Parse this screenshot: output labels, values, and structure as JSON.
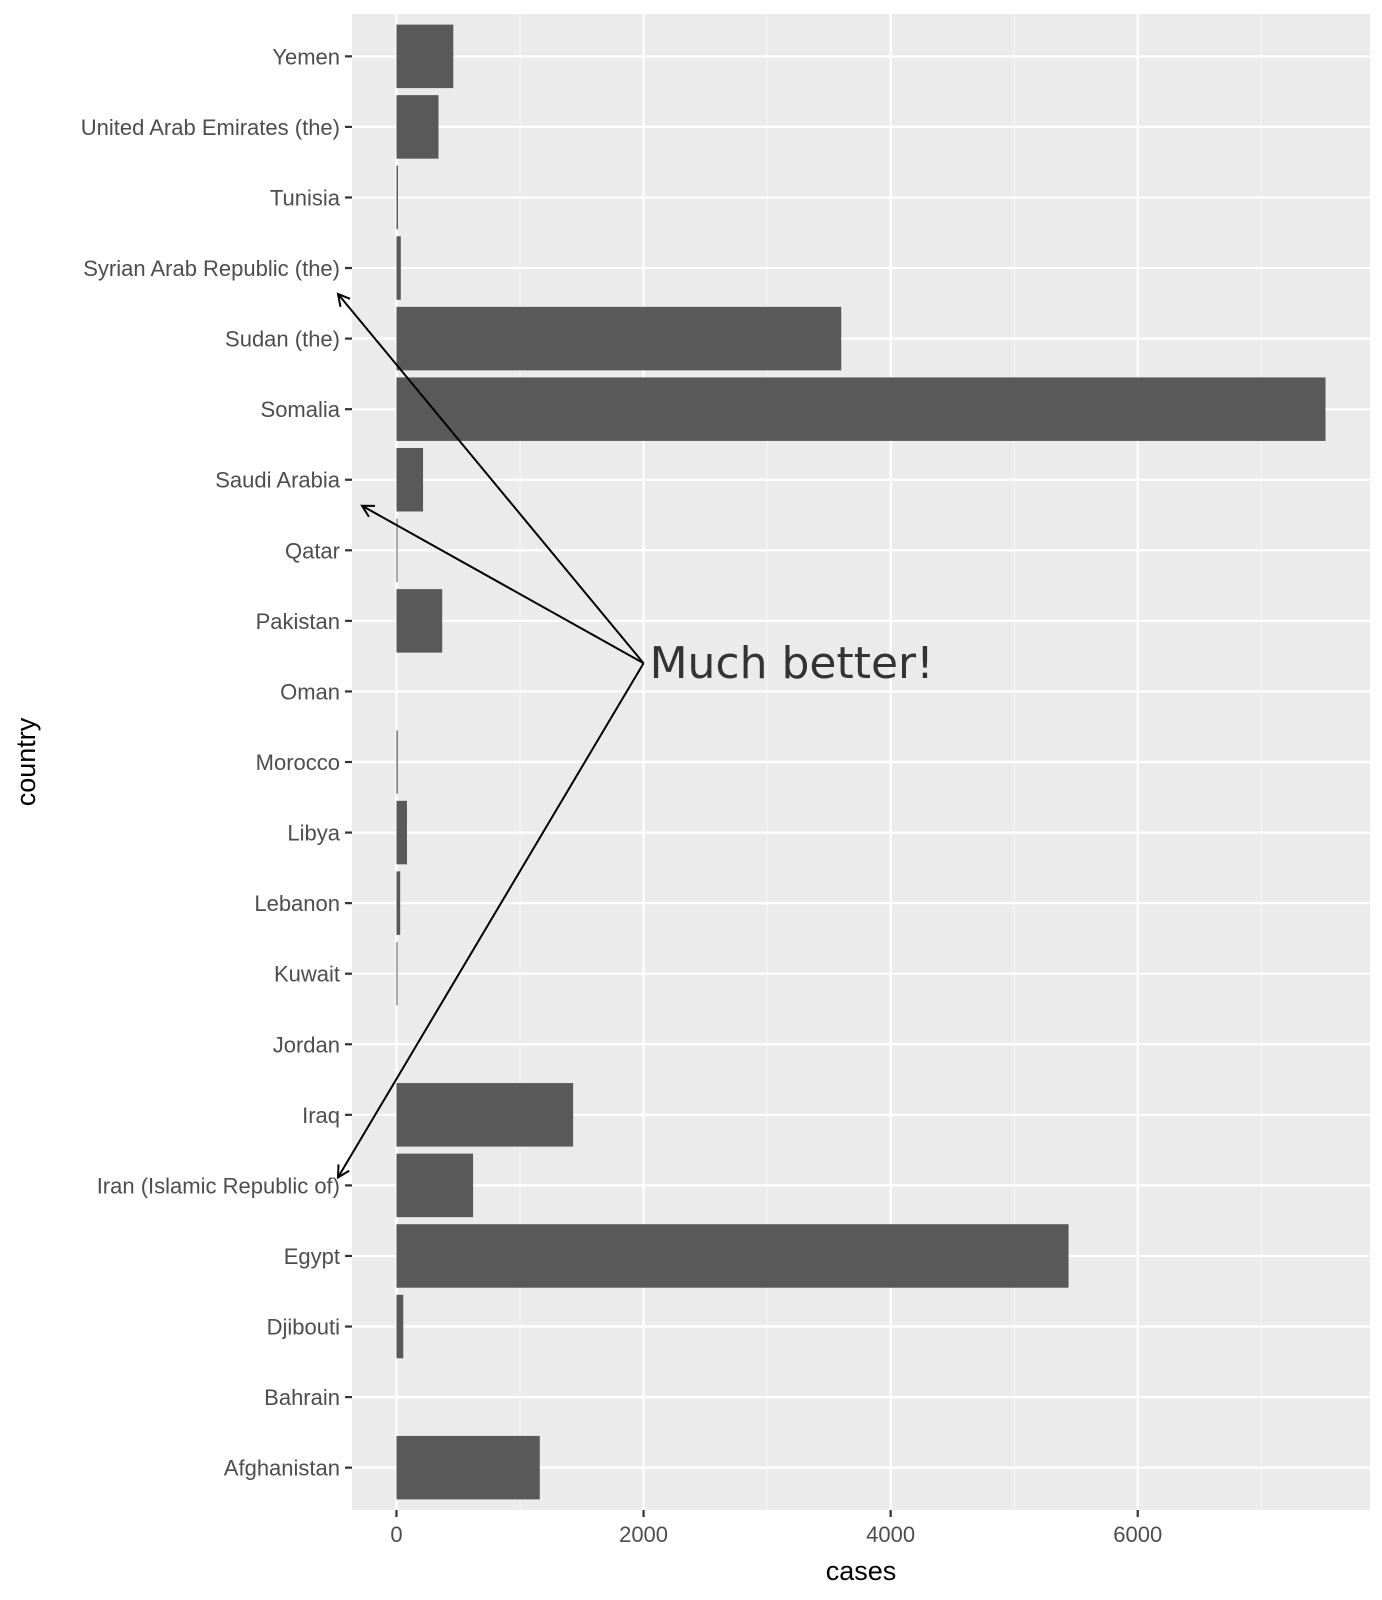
{
  "chart_data": {
    "type": "bar",
    "orientation": "horizontal",
    "categories": [
      "Afghanistan",
      "Bahrain",
      "Djibouti",
      "Egypt",
      "Iran (Islamic Republic of)",
      "Iraq",
      "Jordan",
      "Kuwait",
      "Lebanon",
      "Libya",
      "Morocco",
      "Oman",
      "Pakistan",
      "Qatar",
      "Saudi Arabia",
      "Somalia",
      "Sudan (the)",
      "Syrian Arab Republic (the)",
      "Tunisia",
      "United Arab Emirates (the)",
      "Yemen"
    ],
    "values": [
      1160,
      0,
      55,
      5440,
      620,
      1430,
      0,
      8,
      30,
      85,
      10,
      0,
      370,
      8,
      215,
      7520,
      3600,
      35,
      12,
      340,
      460
    ],
    "xlabel": "cases",
    "ylabel": "country",
    "xlim": [
      -360,
      7880
    ],
    "xticks": [
      0,
      2000,
      4000,
      6000
    ],
    "xtick_labels": [
      "0",
      "2000",
      "4000",
      "6000"
    ],
    "grid": true,
    "annotation": {
      "text": "Much better!",
      "at": {
        "cases": 2000,
        "country_position": 11.4
      },
      "arrows_to": [
        "Syrian Arab Republic (the)",
        "Saudi Arabia",
        "Iran (Islamic Republic of)"
      ]
    }
  },
  "colors": {
    "bar": "#595959",
    "panel_background": "#ebebeb",
    "grid_major": "#ffffff",
    "grid_minor": "#f5f5f5",
    "tick_text": "#4d4d4d",
    "annotation_text": "#333333",
    "arrow": "#000000"
  }
}
